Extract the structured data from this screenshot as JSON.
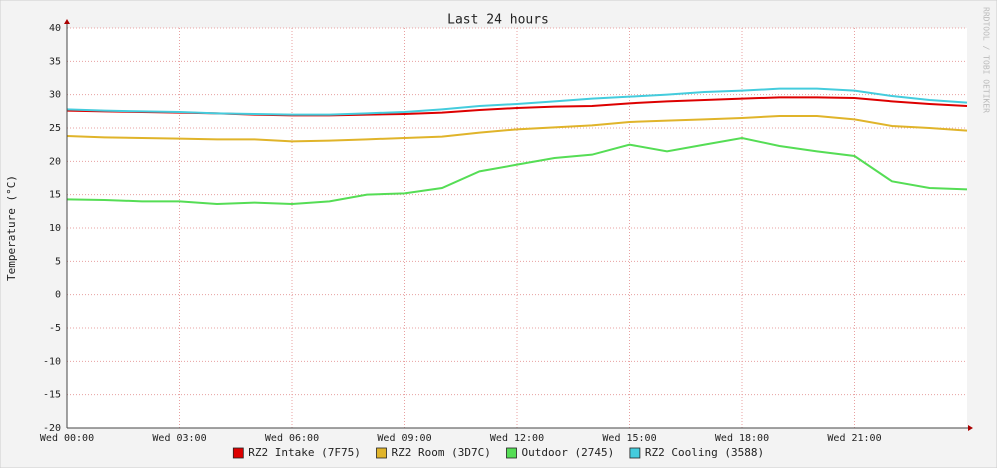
{
  "chart_data": {
    "type": "line",
    "title": "Last 24 hours",
    "y_label": "Temperature (°C)",
    "watermark": "RRDTOOL / TOBI OETIKER",
    "x": [
      0,
      1,
      2,
      3,
      4,
      5,
      6,
      7,
      8,
      9,
      10,
      11,
      12,
      13,
      14,
      15,
      16,
      17,
      18,
      19,
      20,
      21,
      22,
      23,
      24
    ],
    "xlim": [
      0,
      24
    ],
    "xticks": [
      {
        "value": 0,
        "label": "Wed 00:00"
      },
      {
        "value": 3,
        "label": "Wed 03:00"
      },
      {
        "value": 6,
        "label": "Wed 06:00"
      },
      {
        "value": 9,
        "label": "Wed 09:00"
      },
      {
        "value": 12,
        "label": "Wed 12:00"
      },
      {
        "value": 15,
        "label": "Wed 15:00"
      },
      {
        "value": 18,
        "label": "Wed 18:00"
      },
      {
        "value": 21,
        "label": "Wed 21:00"
      }
    ],
    "ylim": [
      -20,
      40
    ],
    "yticks": [
      -20,
      -15,
      -10,
      -5,
      0,
      5,
      10,
      15,
      20,
      25,
      30,
      35,
      40
    ],
    "grid": true,
    "legend": "bottom",
    "series": [
      {
        "name": "RZ2 Intake (7F75)",
        "color": "#dd0000",
        "values": [
          27.6,
          27.5,
          27.4,
          27.3,
          27.2,
          27.0,
          26.9,
          26.9,
          27.0,
          27.1,
          27.3,
          27.7,
          28.0,
          28.2,
          28.3,
          28.7,
          29.0,
          29.2,
          29.4,
          29.6,
          29.6,
          29.5,
          29.0,
          28.6,
          28.3
        ]
      },
      {
        "name": "RZ2 Room (3D7C)",
        "color": "#e0b42a",
        "values": [
          23.8,
          23.6,
          23.5,
          23.4,
          23.3,
          23.3,
          23.0,
          23.1,
          23.3,
          23.5,
          23.7,
          24.3,
          24.8,
          25.1,
          25.4,
          25.9,
          26.1,
          26.3,
          26.5,
          26.8,
          26.8,
          26.3,
          25.3,
          25.0,
          24.6
        ]
      },
      {
        "name": "Outdoor (2745)",
        "color": "#55dd55",
        "values": [
          14.3,
          14.2,
          14.0,
          14.0,
          13.6,
          13.8,
          13.6,
          14.0,
          15.0,
          15.2,
          16.0,
          18.5,
          19.5,
          20.5,
          21.0,
          22.5,
          21.5,
          22.5,
          23.5,
          22.3,
          21.5,
          20.8,
          17.0,
          16.0,
          15.8
        ]
      },
      {
        "name": "RZ2 Cooling (3588)",
        "color": "#44ccdd",
        "values": [
          27.8,
          27.6,
          27.5,
          27.4,
          27.2,
          27.1,
          27.0,
          27.0,
          27.2,
          27.4,
          27.8,
          28.3,
          28.6,
          29.0,
          29.4,
          29.7,
          30.0,
          30.4,
          30.6,
          30.9,
          30.9,
          30.6,
          29.8,
          29.2,
          28.8
        ]
      }
    ]
  }
}
